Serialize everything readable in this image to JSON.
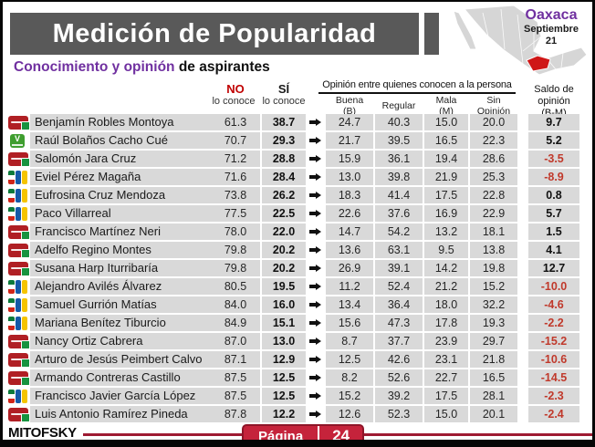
{
  "title": "Medición de Popularidad",
  "region": {
    "state": "Oaxaca",
    "date_month": "Septiembre",
    "date_day": "21"
  },
  "subtitle": {
    "highlight": "Conocimiento y opinión",
    "rest": " de aspirantes"
  },
  "headers": {
    "no_label": "NO",
    "no_sub": "lo conoce",
    "si_label": "SÍ",
    "si_sub": "lo conoce",
    "opinion_group": "Opinión entre quienes conocen a la persona",
    "buena_line1": "Buena",
    "buena_line2": "(B)",
    "regular": "Regular",
    "mala_line1": "Mala",
    "mala_line2": "(M)",
    "sin_line1": "Sin",
    "sin_line2": "Opinión",
    "saldo_line1": "Saldo de",
    "saldo_line2": "opinión",
    "saldo_line3": "(B-M)"
  },
  "footer": {
    "logo": "MITOFSKY",
    "page_label": "Página",
    "page_number": "24"
  },
  "colors": {
    "title_bar": "#595959",
    "accent_purple": "#7030a0",
    "accent_red": "#c00000",
    "row_gray": "#d9d9d9",
    "negative_red": "#c0392b",
    "footer_line": "#9e1b32",
    "page_pill": "#c5233b",
    "map_gray": "#d6d6d6",
    "oaxaca_red": "#cf1717"
  },
  "chart_data": {
    "type": "table",
    "title": "Medición de Popularidad",
    "subtitle": "Conocimiento y opinión de aspirantes",
    "region": "Oaxaca",
    "date": "Septiembre 21",
    "columns": [
      "NO lo conoce",
      "SÍ lo conoce",
      "Buena (B)",
      "Regular",
      "Mala (M)",
      "Sin Opinión",
      "Saldo de opinión (B-M)"
    ],
    "rows": [
      {
        "party": "morena",
        "name": "Benjamín Robles Montoya",
        "no": "61.3",
        "si": "38.7",
        "buena": "24.7",
        "regular": "40.3",
        "mala": "15.0",
        "sin": "20.0",
        "saldo": "9.7"
      },
      {
        "party": "verde",
        "name": "Raúl Bolaños Cacho Cué",
        "no": "70.7",
        "si": "29.3",
        "buena": "21.7",
        "regular": "39.5",
        "mala": "16.5",
        "sin": "22.3",
        "saldo": "5.2"
      },
      {
        "party": "morena",
        "name": "Salomón Jara Cruz",
        "no": "71.2",
        "si": "28.8",
        "buena": "15.9",
        "regular": "36.1",
        "mala": "19.4",
        "sin": "28.6",
        "saldo": "-3.5"
      },
      {
        "party": "coalition",
        "name": "Eviel Pérez Magaña",
        "no": "71.6",
        "si": "28.4",
        "buena": "13.0",
        "regular": "39.8",
        "mala": "21.9",
        "sin": "25.3",
        "saldo": "-8.9"
      },
      {
        "party": "coalition",
        "name": "Eufrosina Cruz Mendoza",
        "no": "73.8",
        "si": "26.2",
        "buena": "18.3",
        "regular": "41.4",
        "mala": "17.5",
        "sin": "22.8",
        "saldo": "0.8"
      },
      {
        "party": "coalition",
        "name": "Paco Villarreal",
        "no": "77.5",
        "si": "22.5",
        "buena": "22.6",
        "regular": "37.6",
        "mala": "16.9",
        "sin": "22.9",
        "saldo": "5.7"
      },
      {
        "party": "morena",
        "name": "Francisco Martínez Neri",
        "no": "78.0",
        "si": "22.0",
        "buena": "14.7",
        "regular": "54.2",
        "mala": "13.2",
        "sin": "18.1",
        "saldo": "1.5"
      },
      {
        "party": "morena",
        "name": "Adelfo Regino Montes",
        "no": "79.8",
        "si": "20.2",
        "buena": "13.6",
        "regular": "63.1",
        "mala": "9.5",
        "sin": "13.8",
        "saldo": "4.1"
      },
      {
        "party": "morena",
        "name": "Susana Harp Iturribaría",
        "no": "79.8",
        "si": "20.2",
        "buena": "26.9",
        "regular": "39.1",
        "mala": "14.2",
        "sin": "19.8",
        "saldo": "12.7"
      },
      {
        "party": "coalition",
        "name": "Alejandro Avilés Álvarez",
        "no": "80.5",
        "si": "19.5",
        "buena": "11.2",
        "regular": "52.4",
        "mala": "21.2",
        "sin": "15.2",
        "saldo": "-10.0"
      },
      {
        "party": "coalition",
        "name": "Samuel Gurrión Matías",
        "no": "84.0",
        "si": "16.0",
        "buena": "13.4",
        "regular": "36.4",
        "mala": "18.0",
        "sin": "32.2",
        "saldo": "-4.6"
      },
      {
        "party": "coalition",
        "name": "Mariana Benítez Tiburcio",
        "no": "84.9",
        "si": "15.1",
        "buena": "15.6",
        "regular": "47.3",
        "mala": "17.8",
        "sin": "19.3",
        "saldo": "-2.2"
      },
      {
        "party": "morena",
        "name": "Nancy Ortiz Cabrera",
        "no": "87.0",
        "si": "13.0",
        "buena": "8.7",
        "regular": "37.7",
        "mala": "23.9",
        "sin": "29.7",
        "saldo": "-15.2"
      },
      {
        "party": "morena",
        "name": "Arturo de Jesús Peimbert Calvo",
        "no": "87.1",
        "si": "12.9",
        "buena": "12.5",
        "regular": "42.6",
        "mala": "23.1",
        "sin": "21.8",
        "saldo": "-10.6"
      },
      {
        "party": "morena",
        "name": "Armando Contreras Castillo",
        "no": "87.5",
        "si": "12.5",
        "buena": "8.2",
        "regular": "52.6",
        "mala": "22.7",
        "sin": "16.5",
        "saldo": "-14.5"
      },
      {
        "party": "coalition",
        "name": "Francisco Javier García López",
        "no": "87.5",
        "si": "12.5",
        "buena": "15.2",
        "regular": "39.2",
        "mala": "17.5",
        "sin": "28.1",
        "saldo": "-2.3"
      },
      {
        "party": "morena",
        "name": "Luis Antonio Ramírez Pineda",
        "no": "87.8",
        "si": "12.2",
        "buena": "12.6",
        "regular": "52.3",
        "mala": "15.0",
        "sin": "20.1",
        "saldo": "-2.4"
      }
    ]
  }
}
